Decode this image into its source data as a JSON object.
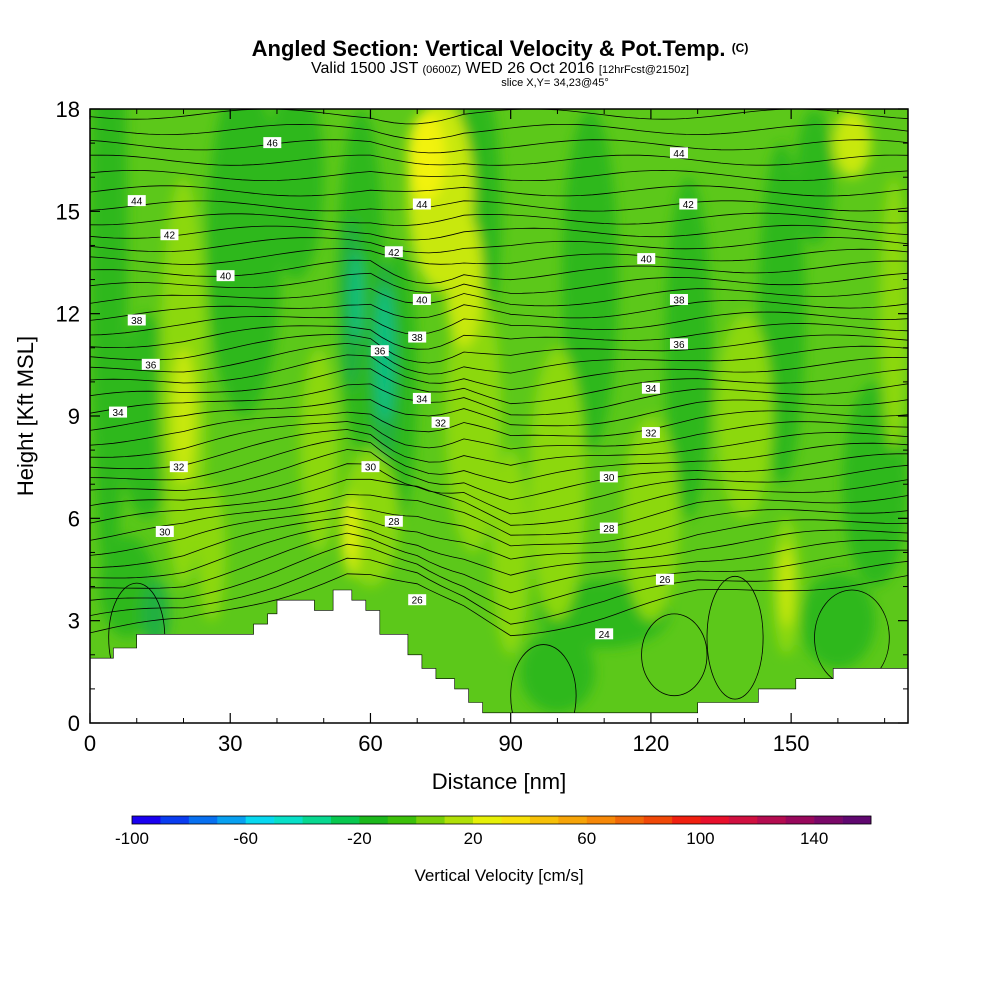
{
  "title": {
    "main": "Angled Section: Vertical Velocity & Pot.Temp.",
    "main_unit": "(C)",
    "valid_prefix": "Valid 1500 JST",
    "valid_utc": "(0600Z)",
    "valid_date": "WED 26 Oct 2016",
    "forecast": "[12hrFcst@2150z]",
    "slice": "slice X,Y= 34,23@45°"
  },
  "chart_data": {
    "type": "heatmap",
    "xlabel": "Distance [nm]",
    "ylabel": "Height [Kft MSL]",
    "xlim": [
      0,
      175
    ],
    "ylim": [
      0,
      18
    ],
    "x_ticks": [
      0,
      30,
      60,
      90,
      120,
      150
    ],
    "y_ticks": [
      0,
      3,
      6,
      9,
      12,
      15,
      18
    ],
    "x_tick_labels": [
      "0",
      "30",
      "60",
      "90",
      "120",
      "150"
    ],
    "y_tick_labels": [
      "0",
      "3",
      "6",
      "9",
      "12",
      "15",
      "18"
    ],
    "colorbar": {
      "title": "Vertical Velocity [cm/s]",
      "min": -100,
      "max": 160,
      "step": 10,
      "tick_values": [
        -100,
        -60,
        -20,
        20,
        60,
        100,
        140
      ],
      "tick_labels": [
        "-100",
        "-60",
        "-20",
        "20",
        "60",
        "100",
        "140"
      ],
      "colors": [
        "#1a00f0",
        "#0a3cf0",
        "#0870f0",
        "#08a0f0",
        "#08d8f0",
        "#08e0c8",
        "#08d890",
        "#08c850",
        "#1cb81c",
        "#3cc00a",
        "#78d008",
        "#b0e008",
        "#e6f008",
        "#f6e008",
        "#f6c008",
        "#f6a408",
        "#f68808",
        "#f06808",
        "#f04808",
        "#f02010",
        "#e8102c",
        "#d01040",
        "#b40c50",
        "#98085c",
        "#7a0868",
        "#600870"
      ]
    },
    "vertical_velocity_colors": {
      "background": "#5cc81a",
      "weak_down": "#2eb81c",
      "moderate_down": "#20b040",
      "strong_down": "#10c080",
      "weak_up": "#8cd810",
      "moderate_up": "#c8e808",
      "strong_up": "#f2f20a"
    },
    "terrain_profile": {
      "x": [
        0,
        5,
        5,
        10,
        10,
        35,
        35,
        38,
        38,
        40,
        40,
        48,
        48,
        52,
        52,
        56,
        56,
        59,
        59,
        62,
        62,
        68,
        68,
        71,
        71,
        74,
        74,
        78,
        78,
        81,
        81,
        84,
        84,
        87,
        87,
        90,
        90,
        130,
        130,
        143,
        143,
        151,
        151,
        159,
        159,
        175
      ],
      "y": [
        1.9,
        1.9,
        2.2,
        2.2,
        2.6,
        2.6,
        2.9,
        2.9,
        3.2,
        3.2,
        3.6,
        3.6,
        3.3,
        3.3,
        3.9,
        3.9,
        3.6,
        3.6,
        3.3,
        3.3,
        2.6,
        2.6,
        2.0,
        2.0,
        1.6,
        1.6,
        1.3,
        1.3,
        1.0,
        1.0,
        0.6,
        0.6,
        0.3,
        0.3,
        0.3,
        0.3,
        0.3,
        0.3,
        0.6,
        0.6,
        1.0,
        1.0,
        1.3,
        1.3,
        1.6,
        1.6
      ]
    },
    "isotherm_labels": [
      {
        "value": "46",
        "x": 39,
        "y": 17.0
      },
      {
        "value": "44",
        "x": 10,
        "y": 15.3
      },
      {
        "value": "44",
        "x": 71,
        "y": 15.2
      },
      {
        "value": "44",
        "x": 126,
        "y": 16.7
      },
      {
        "value": "42",
        "x": 17,
        "y": 14.3
      },
      {
        "value": "42",
        "x": 65,
        "y": 13.8
      },
      {
        "value": "42",
        "x": 128,
        "y": 15.2
      },
      {
        "value": "40",
        "x": 29,
        "y": 13.1
      },
      {
        "value": "40",
        "x": 71,
        "y": 12.4
      },
      {
        "value": "40",
        "x": 119,
        "y": 13.6
      },
      {
        "value": "38",
        "x": 10,
        "y": 11.8
      },
      {
        "value": "38",
        "x": 70,
        "y": 11.3
      },
      {
        "value": "38",
        "x": 126,
        "y": 12.4
      },
      {
        "value": "36",
        "x": 13,
        "y": 10.5
      },
      {
        "value": "36",
        "x": 62,
        "y": 10.9
      },
      {
        "value": "36",
        "x": 126,
        "y": 11.1
      },
      {
        "value": "34",
        "x": 6,
        "y": 9.1
      },
      {
        "value": "34",
        "x": 71,
        "y": 9.5
      },
      {
        "value": "34",
        "x": 120,
        "y": 9.8
      },
      {
        "value": "32",
        "x": 19,
        "y": 7.5
      },
      {
        "value": "32",
        "x": 75,
        "y": 8.8
      },
      {
        "value": "32",
        "x": 120,
        "y": 8.5
      },
      {
        "value": "30",
        "x": 16,
        "y": 5.6
      },
      {
        "value": "30",
        "x": 60,
        "y": 7.5
      },
      {
        "value": "30",
        "x": 111,
        "y": 7.2
      },
      {
        "value": "28",
        "x": 65,
        "y": 5.9
      },
      {
        "value": "28",
        "x": 111,
        "y": 5.7
      },
      {
        "value": "26",
        "x": 70,
        "y": 3.6
      },
      {
        "value": "26",
        "x": 123,
        "y": 4.2
      },
      {
        "value": "24",
        "x": 110,
        "y": 2.6
      }
    ],
    "isotherm_levels": [
      24,
      26,
      28,
      30,
      32,
      34,
      36,
      38,
      40,
      42,
      44,
      46
    ]
  }
}
